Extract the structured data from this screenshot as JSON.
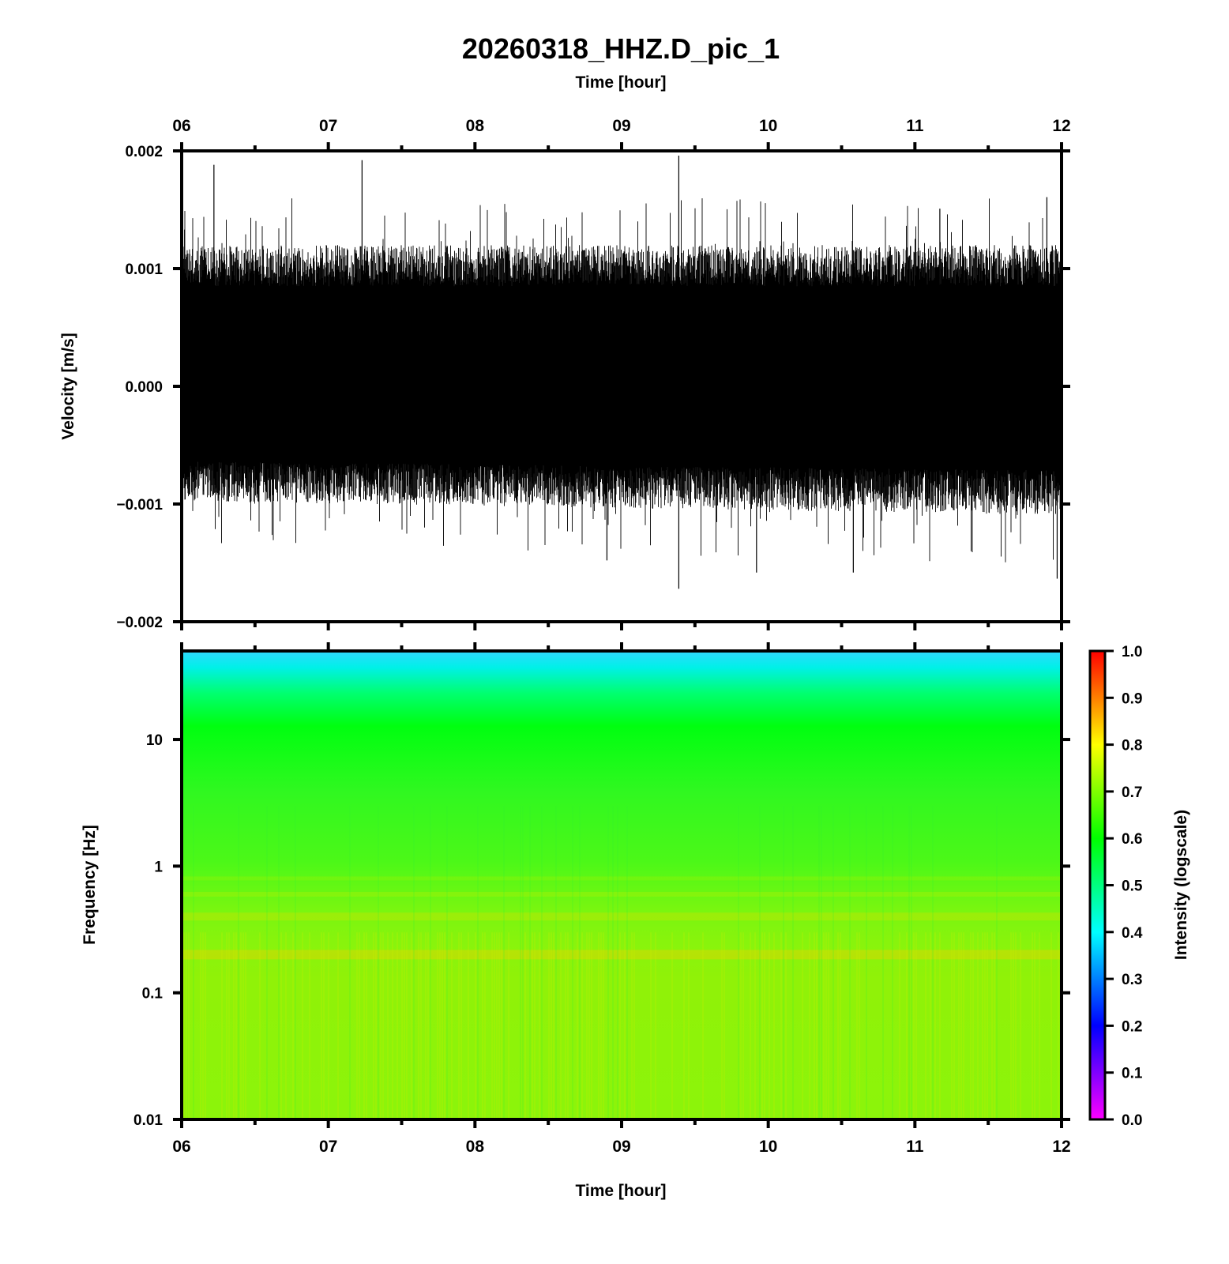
{
  "title": "20260318_HHZ.D_pic_1",
  "chart_data": [
    {
      "type": "line",
      "name": "waveform",
      "x_axis": {
        "label": "Time [hour]",
        "range": [
          6,
          12
        ],
        "ticks": [
          "06",
          "07",
          "08",
          "09",
          "10",
          "11",
          "12"
        ]
      },
      "y_axis": {
        "label": "Velocity [m/s]",
        "range": [
          -0.002,
          0.002
        ],
        "ticks": [
          "0.002",
          "0.001",
          "0.000",
          "−0.001",
          "−0.002"
        ]
      },
      "envelope": {
        "positive_typical": 0.001,
        "negative_typical": -0.00075,
        "max": 0.00196,
        "min": -0.00172
      },
      "line_color": "#000000",
      "grid": false
    },
    {
      "type": "heatmap",
      "name": "spectrogram",
      "x_axis": {
        "label": "Time [hour]",
        "range": [
          6,
          12
        ],
        "ticks": [
          "06",
          "07",
          "08",
          "09",
          "10",
          "11",
          "12"
        ]
      },
      "y_axis": {
        "label": "Frequency [Hz]",
        "scale": "log",
        "range": [
          0.01,
          50
        ],
        "ticks": [
          "10",
          "1",
          "0.1",
          "0.01"
        ]
      },
      "colorbar": {
        "label": "Intensity (logscale)",
        "range": [
          0,
          1
        ],
        "ticks": [
          "1.0",
          "0.9",
          "0.8",
          "0.7",
          "0.6",
          "0.5",
          "0.4",
          "0.3",
          "0.2",
          "0.1",
          "0.0"
        ],
        "colors": [
          "#ff00ff",
          "#0000ff",
          "#00ffff",
          "#00ff00",
          "#ffff00",
          "#ff0000"
        ]
      },
      "intensity_profile": [
        {
          "freq": 50,
          "intensity": 0.42
        },
        {
          "freq": 30,
          "intensity": 0.5
        },
        {
          "freq": 15,
          "intensity": 0.59
        },
        {
          "freq": 5,
          "intensity": 0.63
        },
        {
          "freq": 1,
          "intensity": 0.66
        },
        {
          "freq": 0.4,
          "intensity": 0.7
        },
        {
          "freq": 0.2,
          "intensity": 0.72
        },
        {
          "freq": 0.1,
          "intensity": 0.69
        },
        {
          "freq": 0.01,
          "intensity": 0.7
        }
      ],
      "grid": false
    }
  ]
}
